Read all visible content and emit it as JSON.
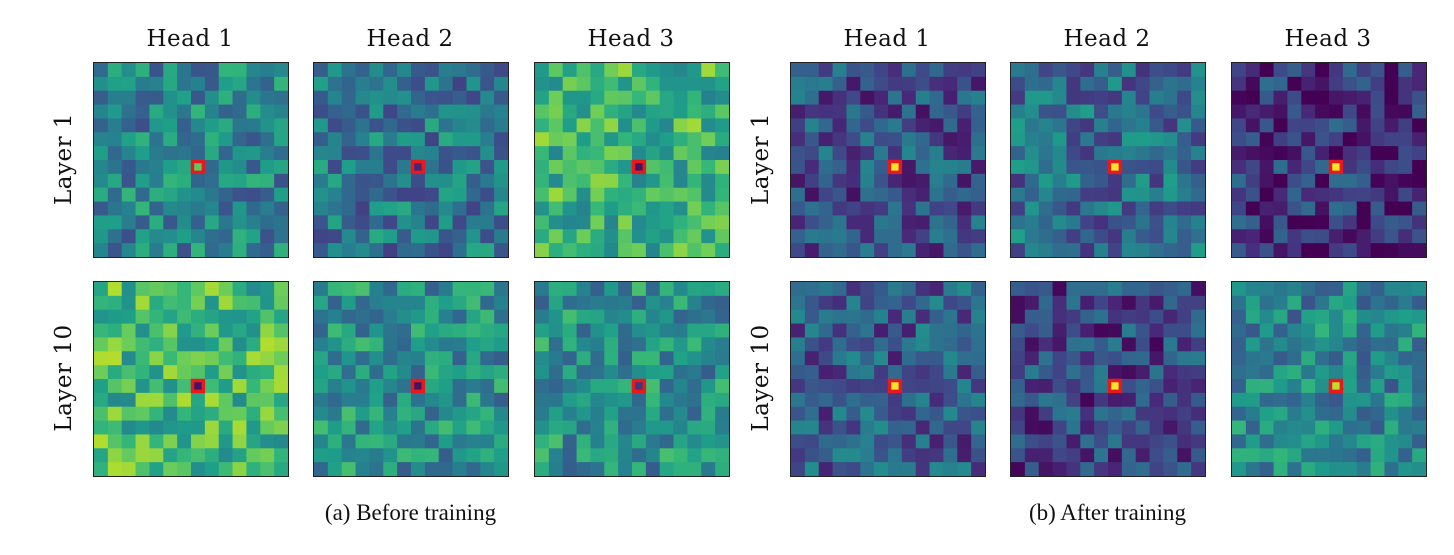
{
  "chart_data": [
    {
      "type": "heatmap",
      "caption": "(a) Before training",
      "columns": [
        "Head 1",
        "Head 2",
        "Head 3"
      ],
      "rows": [
        "Layer 1",
        "Layer 10"
      ],
      "grid_size": 14,
      "query_cell": [
        7,
        7
      ],
      "colormap": "viridis",
      "highlight_color": "#e8191c",
      "mean_intensity": [
        [
          0.45,
          0.4,
          0.65
        ],
        [
          0.68,
          0.5,
          0.5
        ]
      ],
      "query_intensity": [
        [
          0.75,
          0.1,
          0.05
        ],
        [
          0.05,
          0.05,
          0.15
        ]
      ]
    },
    {
      "type": "heatmap",
      "caption": "(b) After training",
      "columns": [
        "Head 1",
        "Head 2",
        "Head 3"
      ],
      "rows": [
        "Layer 1",
        "Layer 10"
      ],
      "grid_size": 14,
      "query_cell": [
        7,
        7
      ],
      "colormap": "viridis",
      "highlight_color": "#e8191c",
      "mean_intensity": [
        [
          0.25,
          0.35,
          0.15
        ],
        [
          0.28,
          0.22,
          0.45
        ]
      ],
      "query_intensity": [
        [
          0.98,
          0.98,
          0.98
        ],
        [
          0.98,
          0.98,
          0.9
        ]
      ]
    }
  ]
}
